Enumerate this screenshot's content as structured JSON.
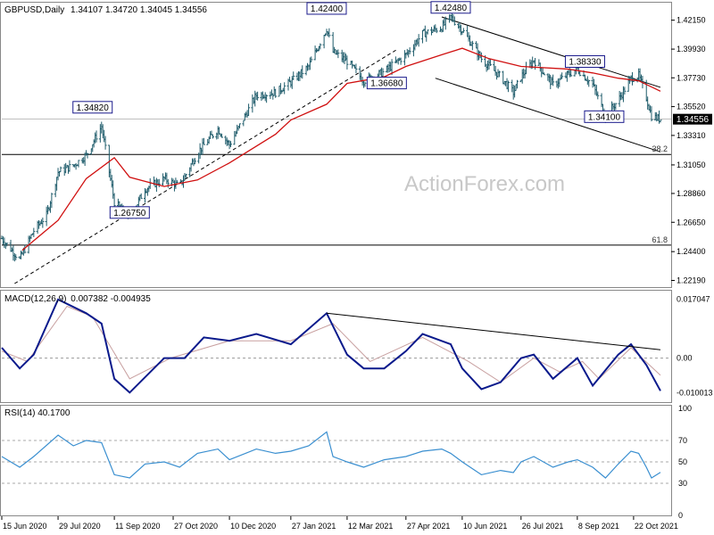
{
  "header": {
    "symbol": "GBPUSD,Daily",
    "ohlc": "1.34107 1.34720 1.34045 1.34556",
    "macd_label": "MACD(12,26,9)",
    "macd_values": "0.007382 -0.004935",
    "rsi_label": "RSI(14) 40.1700",
    "watermark": "ActionForex.com"
  },
  "colors": {
    "background": "#ffffff",
    "candles": "#1f5c6b",
    "ma": "#d01010",
    "macd_main": "#0a1a8c",
    "macd_signal": "#c8a0a0",
    "rsi": "#3a8fd0",
    "trendline": "#000000",
    "label_box": "#1a1a8c",
    "watermark": "#c8c8c8",
    "current_price_box": "#000000"
  },
  "chart_data": [
    {
      "type": "candlestick",
      "name": "GBPUSD,Daily",
      "ylim": [
        1.2195,
        1.4315
      ],
      "y_ticks": [
        "1.42150",
        "1.39930",
        "1.37730",
        "1.35520",
        "1.33310",
        "1.31050",
        "1.28860",
        "1.26650",
        "1.24400",
        "1.22190"
      ],
      "x_ticks": [
        "15 Jun 2020",
        "29 Jul 2020",
        "11 Sep 2020",
        "27 Oct 2020",
        "10 Dec 2020",
        "27 Jan 2021",
        "12 Mar 2021",
        "27 Apr 2021",
        "10 Jun 2021",
        "26 Jul 2021",
        "8 Sep 2021",
        "22 Oct 2021"
      ],
      "close_path": [
        [
          "2020-06-15",
          1.254
        ],
        [
          "2020-06-29",
          1.238
        ],
        [
          "2020-07-10",
          1.26
        ],
        [
          "2020-07-20",
          1.272
        ],
        [
          "2020-07-29",
          1.305
        ],
        [
          "2020-08-10",
          1.31
        ],
        [
          "2020-08-20",
          1.318
        ],
        [
          "2020-09-01",
          1.34
        ],
        [
          "2020-09-11",
          1.282
        ],
        [
          "2020-09-23",
          1.27
        ],
        [
          "2020-10-05",
          1.292
        ],
        [
          "2020-10-20",
          1.3
        ],
        [
          "2020-11-01",
          1.294
        ],
        [
          "2020-11-15",
          1.32
        ],
        [
          "2020-12-01",
          1.338
        ],
        [
          "2020-12-10",
          1.326
        ],
        [
          "2020-12-31",
          1.364
        ],
        [
          "2021-01-15",
          1.366
        ],
        [
          "2021-01-27",
          1.374
        ],
        [
          "2021-02-10",
          1.386
        ],
        [
          "2021-02-24",
          1.415
        ],
        [
          "2021-03-01",
          1.397
        ],
        [
          "2021-03-12",
          1.39
        ],
        [
          "2021-03-25",
          1.375
        ],
        [
          "2021-04-10",
          1.382
        ],
        [
          "2021-04-27",
          1.395
        ],
        [
          "2021-05-10",
          1.411
        ],
        [
          "2021-05-25",
          1.416
        ],
        [
          "2021-06-01",
          1.424
        ],
        [
          "2021-06-10",
          1.414
        ],
        [
          "2021-06-25",
          1.392
        ],
        [
          "2021-07-10",
          1.378
        ],
        [
          "2021-07-20",
          1.366
        ],
        [
          "2021-07-26",
          1.378
        ],
        [
          "2021-08-05",
          1.391
        ],
        [
          "2021-08-20",
          1.372
        ],
        [
          "2021-09-01",
          1.38
        ],
        [
          "2021-09-08",
          1.384
        ],
        [
          "2021-09-20",
          1.372
        ],
        [
          "2021-09-30",
          1.348
        ],
        [
          "2021-10-10",
          1.36
        ],
        [
          "2021-10-20",
          1.377
        ],
        [
          "2021-10-26",
          1.379
        ],
        [
          "2021-11-01",
          1.362
        ],
        [
          "2021-11-05",
          1.348
        ],
        [
          "2021-11-12",
          1.3455
        ]
      ],
      "ma_path": [
        [
          "2020-07-01",
          1.245
        ],
        [
          "2020-07-29",
          1.268
        ],
        [
          "2020-08-20",
          1.3
        ],
        [
          "2020-09-11",
          1.316
        ],
        [
          "2020-09-23",
          1.301
        ],
        [
          "2020-10-20",
          1.294
        ],
        [
          "2020-11-15",
          1.299
        ],
        [
          "2020-12-10",
          1.312
        ],
        [
          "2021-01-15",
          1.334
        ],
        [
          "2021-01-27",
          1.345
        ],
        [
          "2021-02-24",
          1.357
        ],
        [
          "2021-03-12",
          1.373
        ],
        [
          "2021-04-10",
          1.378
        ],
        [
          "2021-04-27",
          1.386
        ],
        [
          "2021-05-25",
          1.395
        ],
        [
          "2021-06-10",
          1.4
        ],
        [
          "2021-07-01",
          1.392
        ],
        [
          "2021-07-26",
          1.386
        ],
        [
          "2021-09-01",
          1.384
        ],
        [
          "2021-09-20",
          1.381
        ],
        [
          "2021-10-10",
          1.377
        ],
        [
          "2021-10-26",
          1.375
        ],
        [
          "2021-11-12",
          1.367
        ]
      ],
      "price_labels": [
        {
          "text": "1.34820",
          "date": "2020-08-25",
          "value": 1.3482
        },
        {
          "text": "1.26750",
          "date": "2020-09-23",
          "value": 1.2675
        },
        {
          "text": "1.42400",
          "date": "2021-02-24",
          "value": 1.424
        },
        {
          "text": "1.36680",
          "date": "2021-04-12",
          "value": 1.3668
        },
        {
          "text": "1.42480",
          "date": "2021-06-01",
          "value": 1.4248
        },
        {
          "text": "1.38330",
          "date": "2021-09-14",
          "value": 1.3833
        },
        {
          "text": "1.34100",
          "date": "2021-09-29",
          "value": 1.341
        }
      ],
      "fib_levels": [
        {
          "label": "38.2",
          "value": 1.3185
        },
        {
          "label": "61.8",
          "value": 1.249
        }
      ],
      "current_price": "1.34556",
      "current_price_value": 1.34556
    },
    {
      "type": "line",
      "name": "MACD(12,26,9)",
      "ylim": [
        -0.012,
        0.0185
      ],
      "y_ticks": [
        "0.017047",
        "0.00",
        "-0.010013"
      ],
      "series": [
        {
          "name": "macd",
          "values": [
            [
              "2020-06-15",
              0.003
            ],
            [
              "2020-06-29",
              -0.003
            ],
            [
              "2020-07-10",
              0.001
            ],
            [
              "2020-07-29",
              0.017
            ],
            [
              "2020-08-20",
              0.013
            ],
            [
              "2020-09-01",
              0.01
            ],
            [
              "2020-09-11",
              -0.006
            ],
            [
              "2020-09-23",
              -0.01
            ],
            [
              "2020-10-20",
              0.0
            ],
            [
              "2020-11-05",
              0.0
            ],
            [
              "2020-11-20",
              0.006
            ],
            [
              "2020-12-10",
              0.005
            ],
            [
              "2020-12-31",
              0.007
            ],
            [
              "2021-01-27",
              0.004
            ],
            [
              "2021-02-24",
              0.013
            ],
            [
              "2021-03-12",
              0.001
            ],
            [
              "2021-03-25",
              -0.003
            ],
            [
              "2021-04-10",
              -0.003
            ],
            [
              "2021-04-27",
              0.002
            ],
            [
              "2021-05-10",
              0.007
            ],
            [
              "2021-06-01",
              0.004
            ],
            [
              "2021-06-10",
              -0.003
            ],
            [
              "2021-06-25",
              -0.009
            ],
            [
              "2021-07-10",
              -0.007
            ],
            [
              "2021-07-26",
              0.0
            ],
            [
              "2021-08-05",
              0.001
            ],
            [
              "2021-08-20",
              -0.006
            ],
            [
              "2021-09-08",
              0.0
            ],
            [
              "2021-09-20",
              -0.008
            ],
            [
              "2021-10-10",
              0.001
            ],
            [
              "2021-10-20",
              0.004
            ],
            [
              "2021-11-01",
              -0.002
            ],
            [
              "2021-11-12",
              -0.0095
            ]
          ]
        },
        {
          "name": "signal",
          "values": [
            [
              "2020-06-15",
              0.002
            ],
            [
              "2020-07-05",
              -0.001
            ],
            [
              "2020-08-05",
              0.015
            ],
            [
              "2020-08-25",
              0.012
            ],
            [
              "2020-09-23",
              -0.006
            ],
            [
              "2020-10-25",
              0.0
            ],
            [
              "2020-12-10",
              0.005
            ],
            [
              "2021-01-27",
              0.005
            ],
            [
              "2021-03-01",
              0.01
            ],
            [
              "2021-03-30",
              -0.001
            ],
            [
              "2021-05-10",
              0.006
            ],
            [
              "2021-06-15",
              -0.001
            ],
            [
              "2021-07-10",
              -0.007
            ],
            [
              "2021-08-05",
              0.0
            ],
            [
              "2021-08-25",
              -0.004
            ],
            [
              "2021-09-12",
              -0.001
            ],
            [
              "2021-09-25",
              -0.006
            ],
            [
              "2021-10-20",
              0.003
            ],
            [
              "2021-11-12",
              -0.005
            ]
          ]
        }
      ],
      "trendline": [
        [
          "2021-02-24",
          0.013
        ],
        [
          "2021-11-12",
          0.0024
        ]
      ]
    },
    {
      "type": "line",
      "name": "RSI(14)",
      "ylim": [
        0,
        100
      ],
      "y_ticks": [
        100,
        70,
        50,
        30,
        0
      ],
      "dashed_levels": [
        70,
        50,
        30
      ],
      "series": [
        {
          "name": "RSI(14)",
          "values": [
            [
              "2020-06-15",
              55
            ],
            [
              "2020-06-29",
              45
            ],
            [
              "2020-07-10",
              55
            ],
            [
              "2020-07-29",
              75
            ],
            [
              "2020-08-10",
              65
            ],
            [
              "2020-08-20",
              70
            ],
            [
              "2020-09-01",
              68
            ],
            [
              "2020-09-11",
              38
            ],
            [
              "2020-09-23",
              35
            ],
            [
              "2020-10-05",
              48
            ],
            [
              "2020-10-20",
              50
            ],
            [
              "2020-11-01",
              45
            ],
            [
              "2020-11-15",
              58
            ],
            [
              "2020-12-01",
              62
            ],
            [
              "2020-12-10",
              52
            ],
            [
              "2020-12-31",
              62
            ],
            [
              "2021-01-15",
              58
            ],
            [
              "2021-01-27",
              60
            ],
            [
              "2021-02-10",
              65
            ],
            [
              "2021-02-24",
              78
            ],
            [
              "2021-03-01",
              55
            ],
            [
              "2021-03-12",
              50
            ],
            [
              "2021-03-25",
              45
            ],
            [
              "2021-04-10",
              52
            ],
            [
              "2021-04-27",
              55
            ],
            [
              "2021-05-10",
              60
            ],
            [
              "2021-05-25",
              62
            ],
            [
              "2021-06-01",
              58
            ],
            [
              "2021-06-10",
              50
            ],
            [
              "2021-06-25",
              38
            ],
            [
              "2021-07-10",
              42
            ],
            [
              "2021-07-20",
              40
            ],
            [
              "2021-07-26",
              50
            ],
            [
              "2021-08-05",
              55
            ],
            [
              "2021-08-20",
              45
            ],
            [
              "2021-09-01",
              50
            ],
            [
              "2021-09-08",
              52
            ],
            [
              "2021-09-20",
              45
            ],
            [
              "2021-09-30",
              35
            ],
            [
              "2021-10-10",
              48
            ],
            [
              "2021-10-20",
              60
            ],
            [
              "2021-10-26",
              58
            ],
            [
              "2021-11-01",
              45
            ],
            [
              "2021-11-05",
              35
            ],
            [
              "2021-11-12",
              40.17
            ]
          ]
        }
      ]
    }
  ]
}
